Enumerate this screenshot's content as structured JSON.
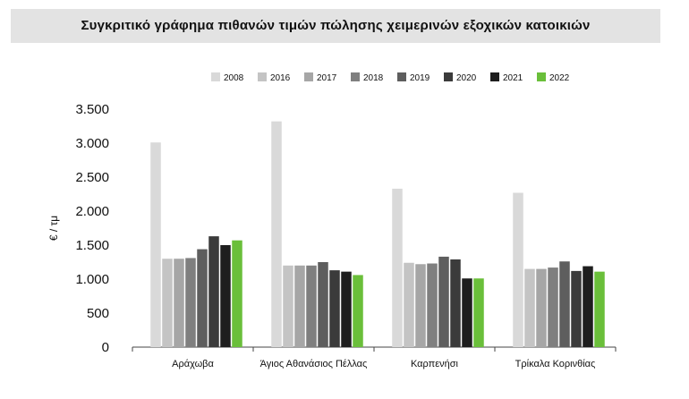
{
  "chart_data": {
    "type": "bar",
    "title": "Συγκριτικό γράφημα πιθανών τιμών πώλησης χειμερινών εξοχικών κατοικιών",
    "ylabel": "€ / τμ",
    "xlabel": "",
    "ylim": [
      0,
      3500
    ],
    "yticks": [
      0,
      500,
      1000,
      1500,
      2000,
      2500,
      3000,
      3500
    ],
    "ytick_labels": [
      "0",
      "500",
      "1.000",
      "1.500",
      "2.000",
      "2.500",
      "3.000",
      "3.500"
    ],
    "grid": false,
    "legend_position": "top-right",
    "categories": [
      "Αράχωβα",
      "Άγιος Αθανάσιος Πέλλας",
      "Καρπενήσι",
      "Τρίκαλα Κορινθίας"
    ],
    "series": [
      {
        "name": "2008",
        "color": "#d9d9d9",
        "values": [
          3010,
          3320,
          2330,
          2270
        ]
      },
      {
        "name": "2016",
        "color": "#c4c4c4",
        "values": [
          1300,
          1200,
          1240,
          1150
        ]
      },
      {
        "name": "2017",
        "color": "#a6a6a6",
        "values": [
          1300,
          1200,
          1220,
          1150
        ]
      },
      {
        "name": "2018",
        "color": "#7f7f7f",
        "values": [
          1310,
          1200,
          1230,
          1170
        ]
      },
      {
        "name": "2019",
        "color": "#5e5e5e",
        "values": [
          1440,
          1250,
          1330,
          1260
        ]
      },
      {
        "name": "2020",
        "color": "#3b3b3b",
        "values": [
          1630,
          1130,
          1290,
          1120
        ]
      },
      {
        "name": "2021",
        "color": "#1e1e1e",
        "values": [
          1500,
          1110,
          1010,
          1190
        ]
      },
      {
        "name": "2022",
        "color": "#6abf3a",
        "values": [
          1570,
          1060,
          1010,
          1110
        ]
      }
    ]
  }
}
